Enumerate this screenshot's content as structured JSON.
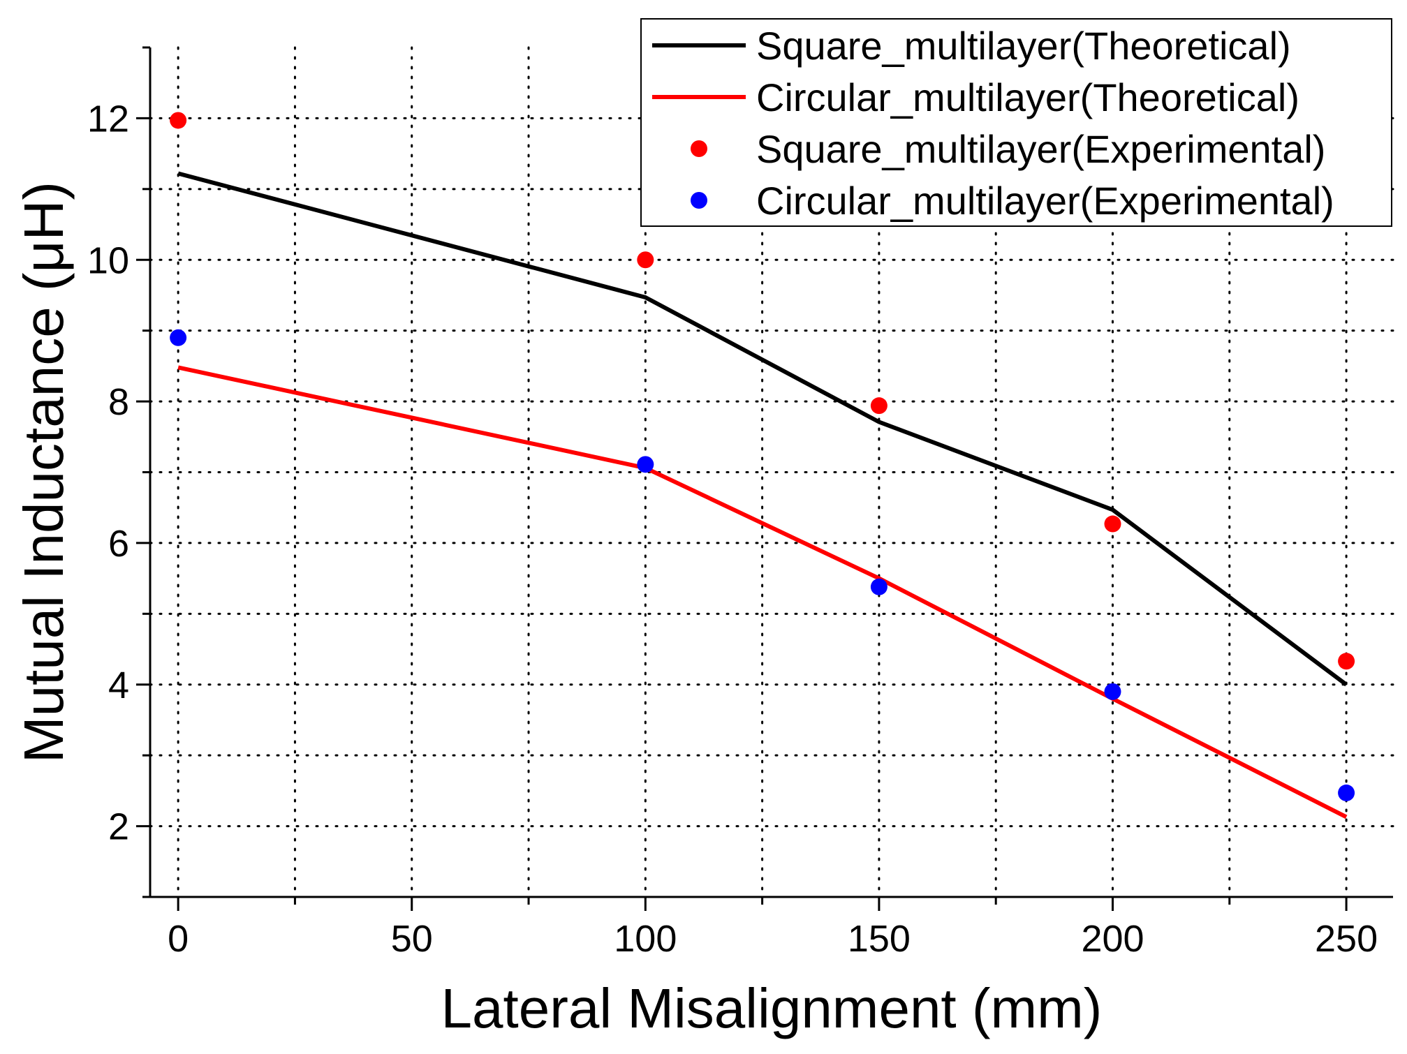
{
  "chart_data": {
    "type": "line",
    "title": "",
    "xlabel": "Lateral Misalignment (mm)",
    "ylabel": "Mutual Inductance (μH)",
    "xlim": [
      -6,
      260
    ],
    "ylim": [
      1,
      13
    ],
    "xticks": [
      0,
      50,
      100,
      150,
      200,
      250
    ],
    "xtick_labels": [
      "0",
      "50",
      "100",
      "150",
      "200",
      "250"
    ],
    "yticks": [
      2,
      4,
      6,
      8,
      10,
      12
    ],
    "ytick_labels": [
      "2",
      "4",
      "6",
      "8",
      "10",
      "12"
    ],
    "grid": true,
    "legend_position": "top-right",
    "series": [
      {
        "name": "Square_multilayer(Theoretical)",
        "kind": "line",
        "color": "#000000",
        "x": [
          0,
          100,
          150,
          200,
          250
        ],
        "y": [
          11.22,
          9.47,
          7.71,
          6.47,
          4.0
        ]
      },
      {
        "name": "Circular_multilayer(Theoretical)",
        "kind": "line",
        "color": "#ff0000",
        "x": [
          0,
          100,
          150,
          200,
          250
        ],
        "y": [
          8.48,
          7.06,
          5.5,
          3.8,
          2.13
        ]
      },
      {
        "name": "Square_multilayer(Experimental)",
        "kind": "scatter",
        "color": "#ff0000",
        "x": [
          0,
          100,
          150,
          200,
          250
        ],
        "y": [
          11.97,
          10.0,
          7.94,
          6.27,
          4.33
        ]
      },
      {
        "name": "Circular_multilayer(Experimental)",
        "kind": "scatter",
        "color": "#0000ff",
        "x": [
          0,
          100,
          150,
          200,
          250
        ],
        "y": [
          8.9,
          7.11,
          5.38,
          3.9,
          2.47
        ]
      }
    ]
  }
}
